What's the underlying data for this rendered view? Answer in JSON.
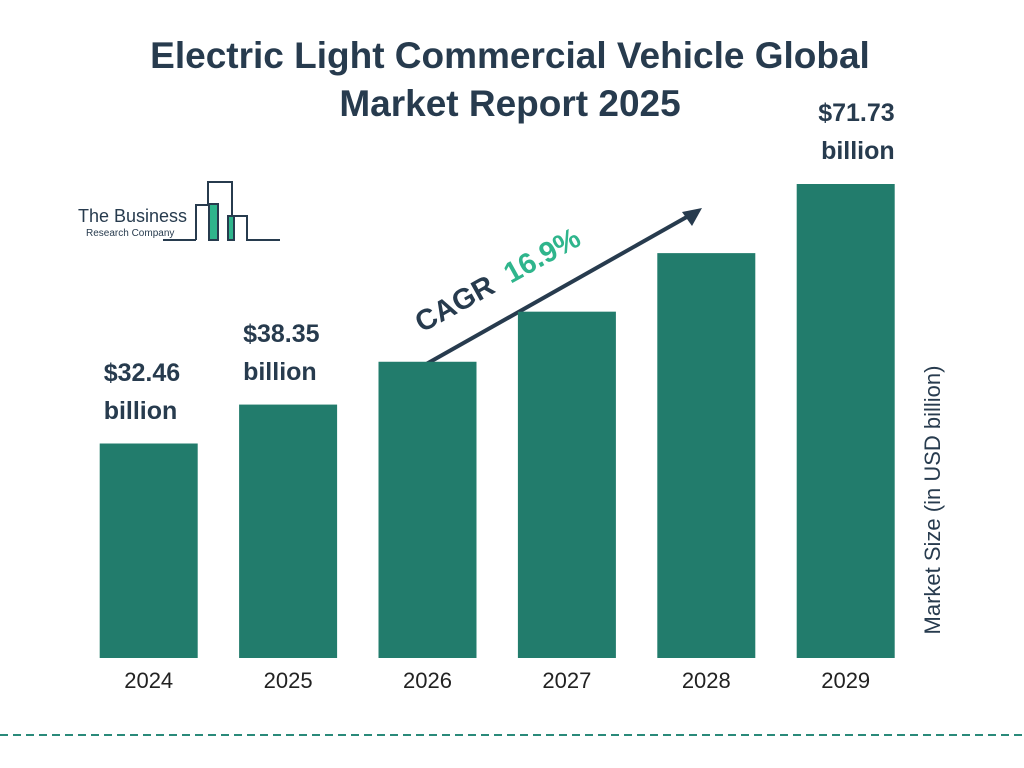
{
  "chart_data": {
    "type": "bar",
    "title": "Electric Light Commercial Vehicle Global Market Report 2025",
    "categories": [
      "2024",
      "2025",
      "2026",
      "2027",
      "2028",
      "2029"
    ],
    "values": [
      32.46,
      38.35,
      44.83,
      52.41,
      61.27,
      71.73
    ],
    "value_labels": [
      "$32.46 billion",
      "$38.35 billion",
      null,
      null,
      null,
      "$71.73 billion"
    ],
    "color": "#227c6c",
    "y_axis_label": "Market Size (in USD billion)",
    "cagr_label": "CAGR",
    "cagr_value": "16.9%",
    "logo_line1": "The Business",
    "logo_line2": "Research Company"
  }
}
